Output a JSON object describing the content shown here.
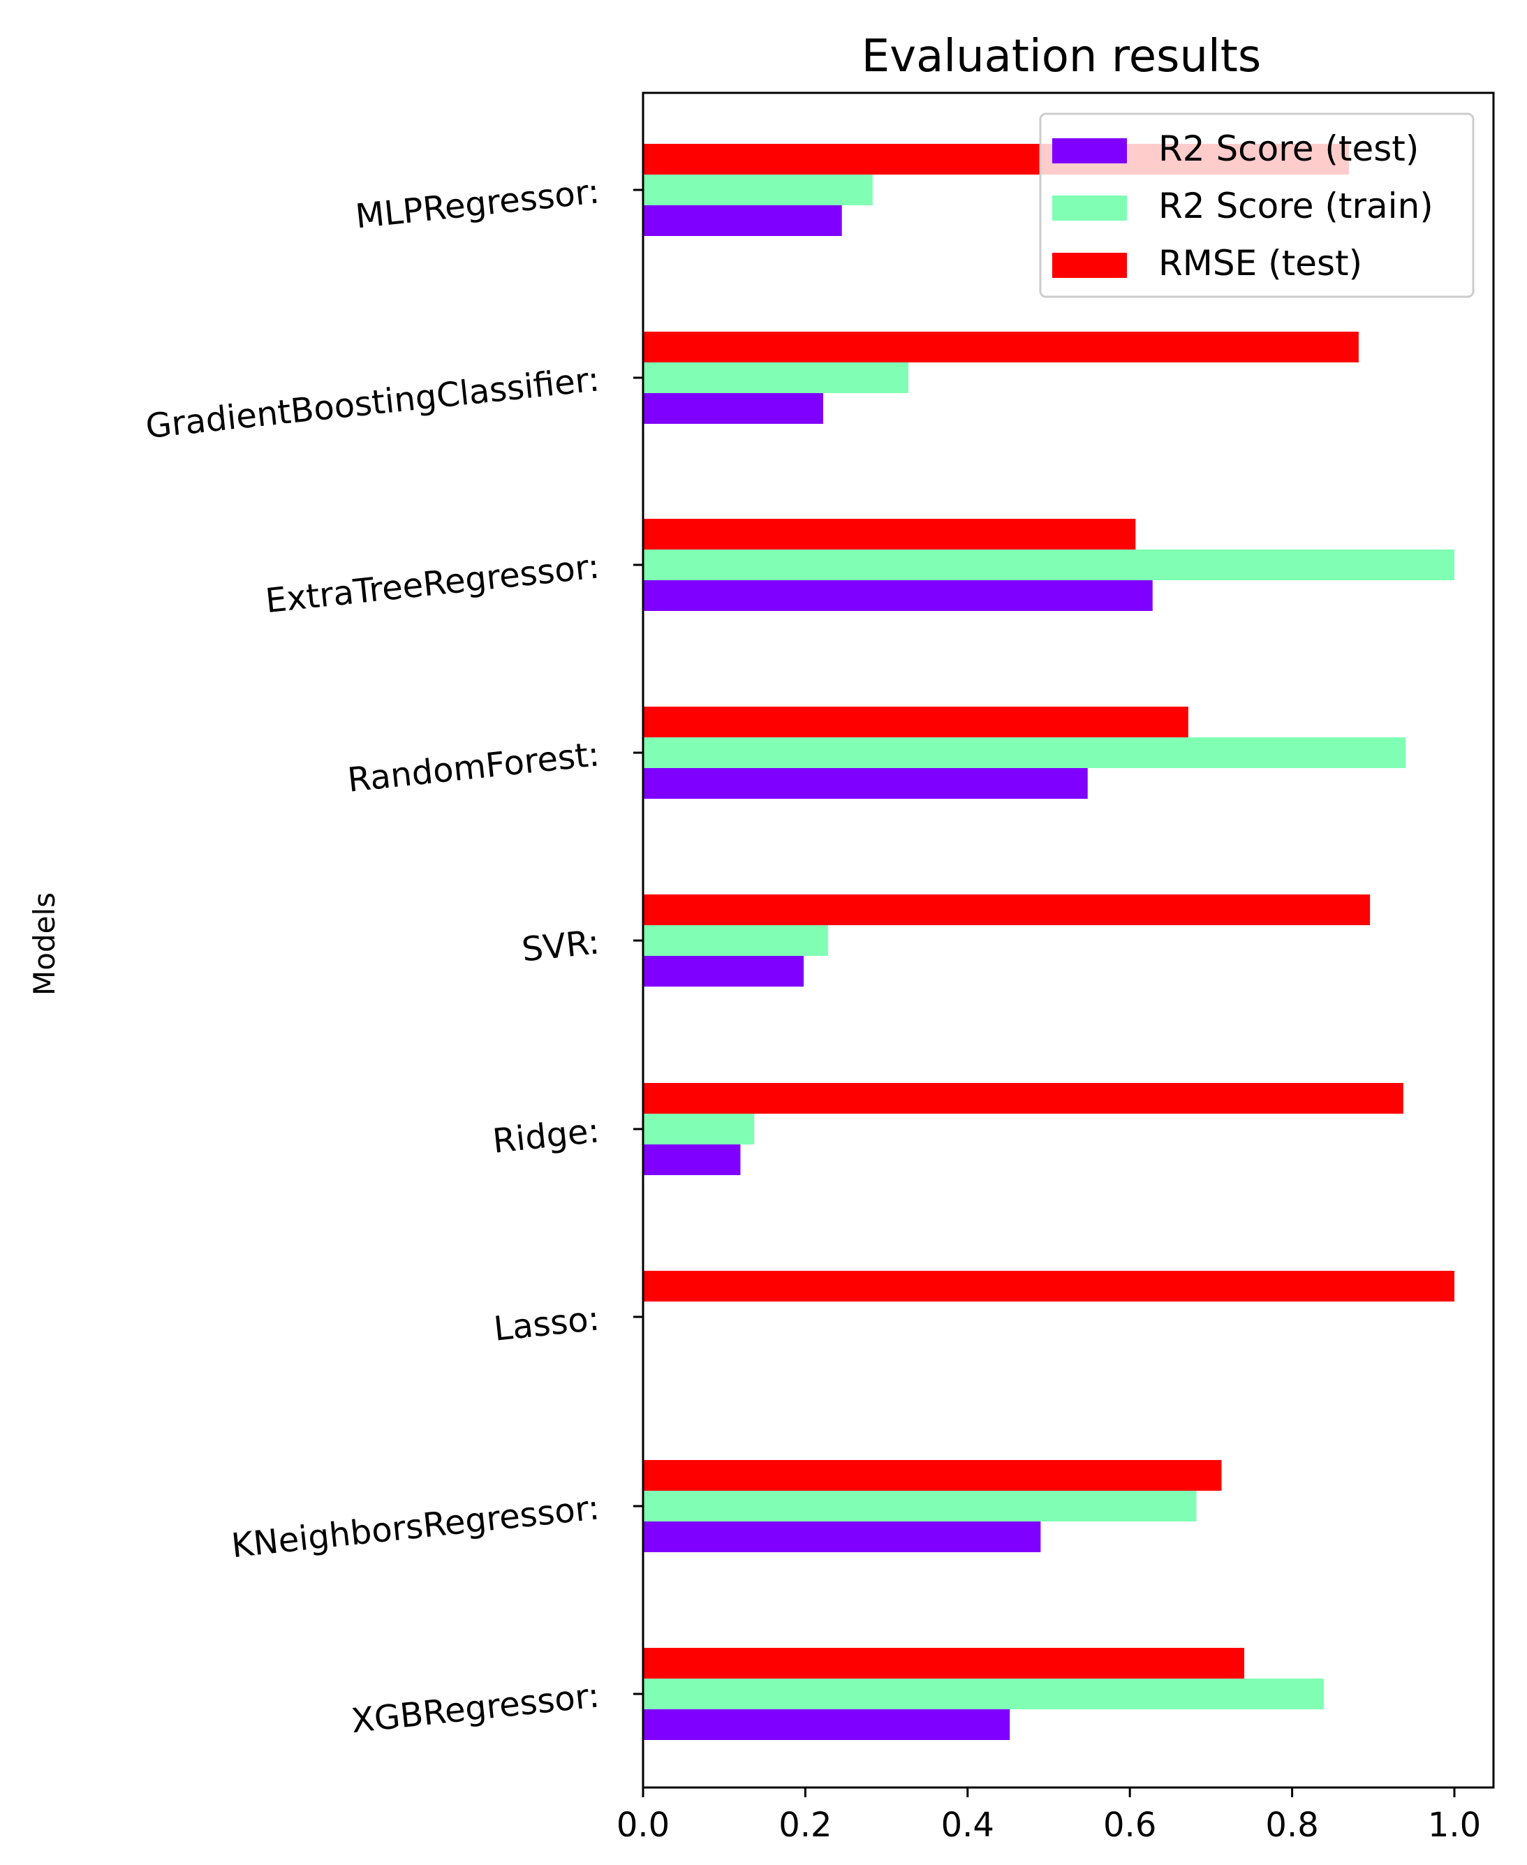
{
  "chart_data": {
    "type": "bar",
    "orientation": "horizontal",
    "title": "Evaluation results",
    "xlabel": "",
    "ylabel": "Models",
    "xlim": [
      0.0,
      1.05
    ],
    "xticks": [
      0.0,
      0.2,
      0.4,
      0.6,
      0.8,
      1.0
    ],
    "xtick_labels": [
      "0.0",
      "0.2",
      "0.4",
      "0.6",
      "0.8",
      "1.0"
    ],
    "grid": false,
    "legend_position": "top-right",
    "categories": [
      "MLPRegressor:",
      "GradientBoostingClassifier:",
      "ExtraTreeRegressor:",
      "RandomForest:",
      "SVR:",
      "Ridge:",
      "Lasso:",
      "KNeighborsRegressor:",
      "XGBRegressor:"
    ],
    "series": [
      {
        "name": "R2 Score (test)",
        "color": "#8000ff",
        "values": [
          0.245,
          0.222,
          0.628,
          0.548,
          0.198,
          0.12,
          0.0,
          0.49,
          0.452
        ]
      },
      {
        "name": "R2 Score (train)",
        "color": "#80ffb4",
        "values": [
          0.283,
          0.327,
          1.0,
          0.94,
          0.228,
          0.137,
          0.0,
          0.682,
          0.839
        ]
      },
      {
        "name": "RMSE (test)",
        "color": "#ff0000",
        "values": [
          0.87,
          0.882,
          0.607,
          0.672,
          0.896,
          0.937,
          1.0,
          0.713,
          0.741
        ]
      }
    ]
  }
}
